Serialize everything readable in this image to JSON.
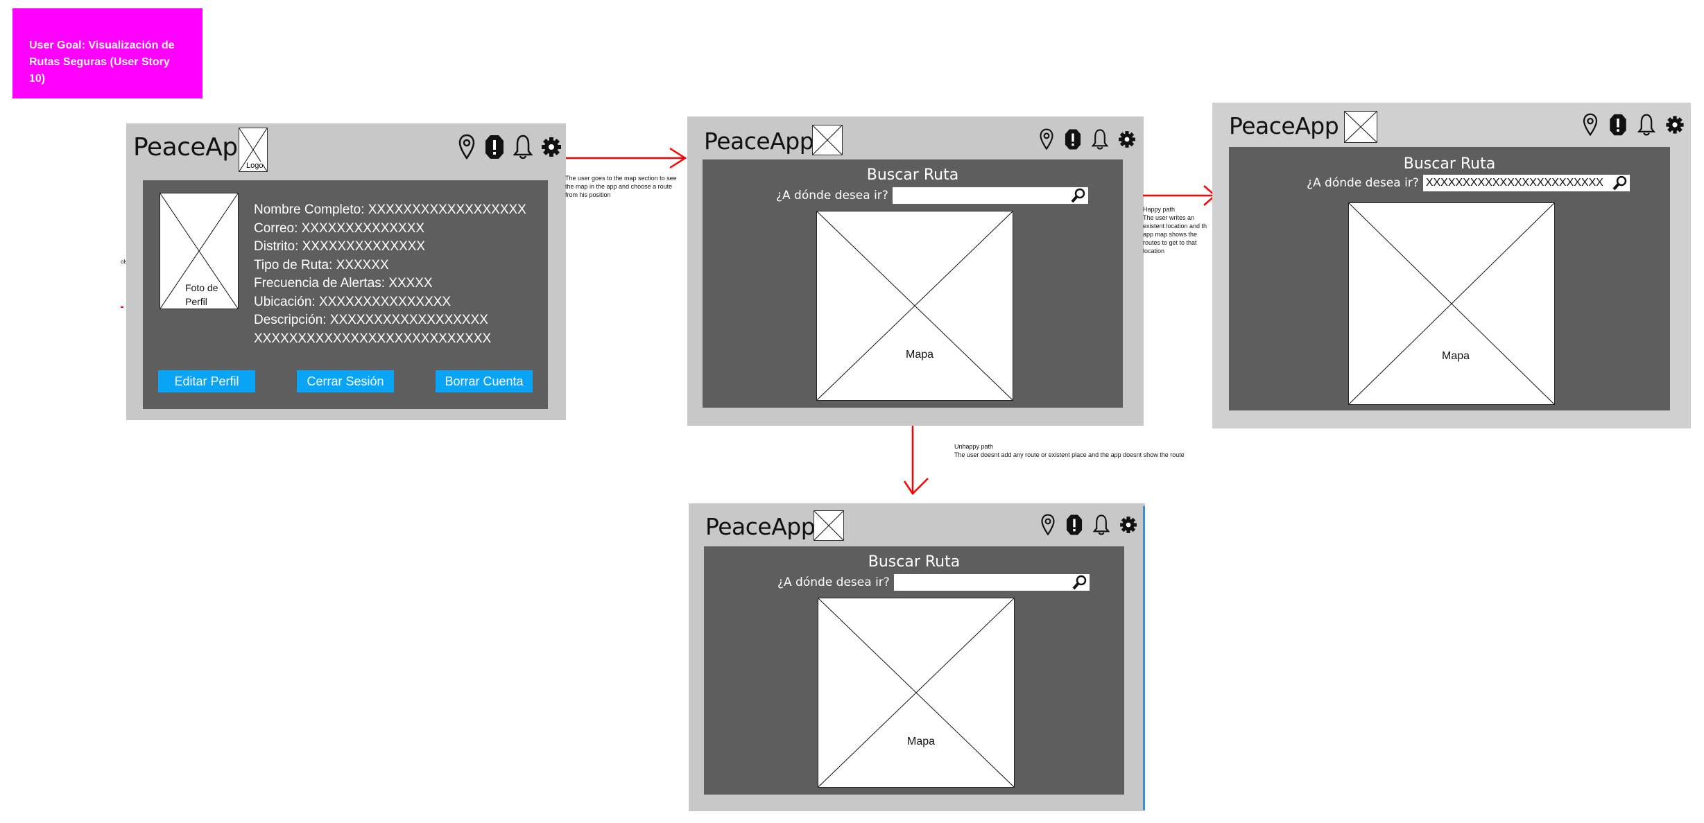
{
  "goal": {
    "line1": "User Goal: Visualización de",
    "line2": "Rutas Seguras (User Story 10)"
  },
  "app": {
    "name": "PeaceApp",
    "logo_label": "Logo"
  },
  "icons": [
    "location-pin-icon",
    "alert-icon",
    "bell-icon",
    "gear-icon"
  ],
  "profile": {
    "photo_label_1": "Foto de",
    "photo_label_2": "Perfil",
    "fields": [
      "Nombre Completo: XXXXXXXXXXXXXXXXXX",
      "Correo: XXXXXXXXXXXXXX",
      "Distrito: XXXXXXXXXXXXXX",
      "Tipo de Ruta: XXXXXX",
      "Frecuencia de Alertas: XXXXX",
      "Ubicación: XXXXXXXXXXXXXXX",
      "Descripción: XXXXXXXXXXXXXXXXXX",
      "XXXXXXXXXXXXXXXXXXXXXXXXXXX"
    ],
    "buttons": [
      "Editar Perfil",
      "Cerrar Sesión",
      "Borrar Cuenta"
    ]
  },
  "search": {
    "title": "Buscar Ruta",
    "label": "¿A dónde desea ir?",
    "filled_value": "XXXXXXXXXXXXXXXXXXXXXXXX",
    "map_label": "Mapa"
  },
  "notes": {
    "main_1": "The user goes to the map section to see",
    "main_2": "the map in the app and choose a route",
    "main_3": "from his position",
    "happy_1": "Happy path",
    "happy_2": "The user writes an",
    "happy_3": "existent location and th",
    "happy_4": "app map shows the",
    "happy_5": "routes to get to that",
    "happy_6": "location",
    "unhappy_1": "Unhappy path",
    "unhappy_2": "The user doesnt add any route or existent place and the app doesnt show the route",
    "stray_1": "ols"
  },
  "colors": {
    "goal": "#ff00ff",
    "frame": "#c8c8c8",
    "panel": "#5e5e5e",
    "button": "#0aa4f6",
    "arrow": "#ff0000"
  }
}
